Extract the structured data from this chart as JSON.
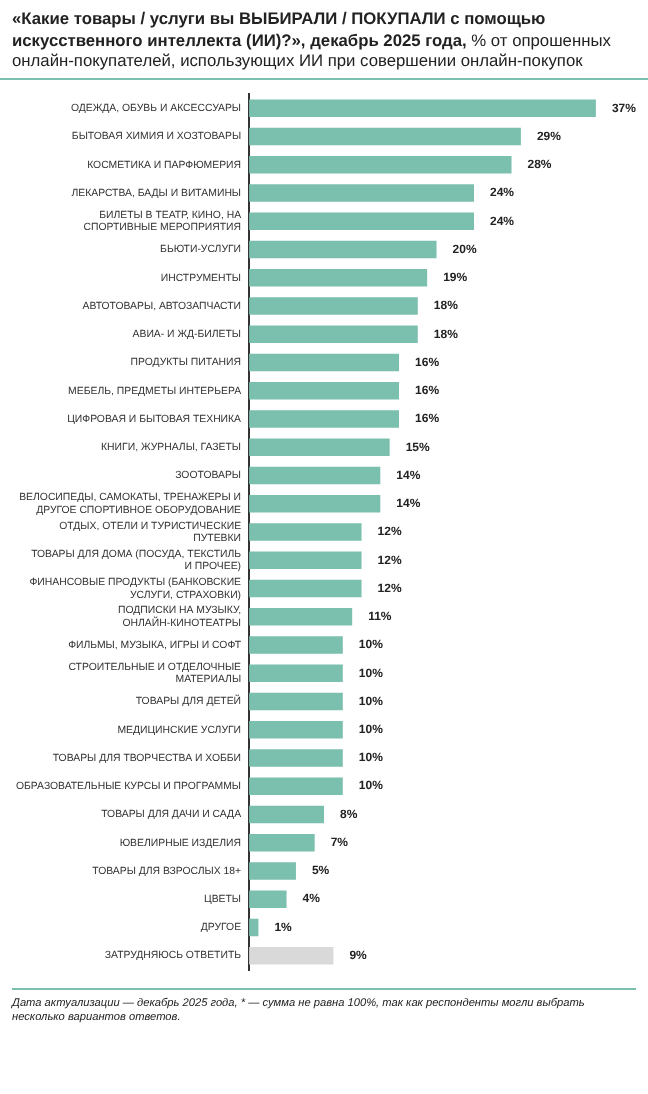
{
  "chart_data": {
    "type": "bar",
    "orientation": "horizontal",
    "title": "«Какие товары / услуги вы ВЫБИРАЛИ / ПОКУПАЛИ с помощью искусственного интеллекта (ИИ)?», декабрь 2025 года,",
    "subtitle": "% от опрошенных онлайн-покупателей, использующих ИИ при совершении онлайн-покупок",
    "categories": [
      "ОДЕЖДА, ОБУВЬ И АКСЕССУАРЫ",
      "БЫТОВАЯ ХИМИЯ И ХОЗТОВАРЫ",
      "КОСМЕТИКА И ПАРФЮМЕРИЯ",
      "ЛЕКАРСТВА, БАДЫ И ВИТАМИНЫ",
      "БИЛЕТЫ В ТЕАТР, КИНО, НА СПОРТИВНЫЕ МЕРОПРИЯТИЯ",
      "БЬЮТИ-УСЛУГИ",
      "ИНСТРУМЕНТЫ",
      "АВТОТОВАРЫ, АВТОЗАПЧАСТИ",
      "АВИА- И ЖД-БИЛЕТЫ",
      "ПРОДУКТЫ ПИТАНИЯ",
      "МЕБЕЛЬ, ПРЕДМЕТЫ ИНТЕРЬЕРА",
      "ЦИФРОВАЯ И БЫТОВАЯ ТЕХНИКА",
      "КНИГИ, ЖУРНАЛЫ, ГАЗЕТЫ",
      "ЗООТОВАРЫ",
      "ВЕЛОСИПЕДЫ, САМОКАТЫ, ТРЕНАЖЕРЫ И ДРУГОЕ СПОРТИВНОЕ ОБОРУДОВАНИЕ",
      "ОТДЫХ, ОТЕЛИ И ТУРИСТИЧЕСКИЕ ПУТЕВКИ",
      "ТОВАРЫ ДЛЯ ДОМА (ПОСУДА, ТЕКСТИЛЬ И ПРОЧЕЕ)",
      "ФИНАНСОВЫЕ ПРОДУКТЫ (БАНКОВСКИЕ УСЛУГИ, СТРАХОВКИ)",
      "ПОДПИСКИ НА МУЗЫКУ, ОНЛАЙН-КИНОТЕАТРЫ",
      "ФИЛЬМЫ, МУЗЫКА, ИГРЫ И СОФТ",
      "СТРОИТЕЛЬНЫЕ И ОТДЕЛОЧНЫЕ МАТЕРИАЛЫ",
      "ТОВАРЫ ДЛЯ ДЕТЕЙ",
      "МЕДИЦИНСКИЕ УСЛУГИ",
      "ТОВАРЫ ДЛЯ ТВОРЧЕСТВА И ХОББИ",
      "ОБРАЗОВАТЕЛЬНЫЕ КУРСЫ И ПРОГРАММЫ",
      "ТОВАРЫ ДЛЯ ДАЧИ И САДА",
      "ЮВЕЛИРНЫЕ ИЗДЕЛИЯ",
      "ТОВАРЫ ДЛЯ ВЗРОСЛЫХ 18+",
      "ЦВЕТЫ",
      "ДРУГОЕ",
      "ЗАТРУДНЯЮСЬ ОТВЕТИТЬ"
    ],
    "values": [
      37,
      29,
      28,
      24,
      24,
      20,
      19,
      18,
      18,
      16,
      16,
      16,
      15,
      14,
      14,
      12,
      12,
      12,
      11,
      10,
      10,
      10,
      10,
      10,
      10,
      8,
      7,
      5,
      4,
      1,
      9
    ],
    "value_labels": [
      "37%",
      "29%",
      "28%",
      "24%",
      "24%",
      "20%",
      "19%",
      "18%",
      "18%",
      "16%",
      "16%",
      "16%",
      "15%",
      "14%",
      "14%",
      "12%",
      "12%",
      "12%",
      "11%",
      "10%",
      "10%",
      "10%",
      "10%",
      "10%",
      "10%",
      "8%",
      "7%",
      "5%",
      "4%",
      "1%",
      "9%"
    ],
    "colors": [
      "#7bbfae",
      "#7bbfae",
      "#7bbfae",
      "#7bbfae",
      "#7bbfae",
      "#7bbfae",
      "#7bbfae",
      "#7bbfae",
      "#7bbfae",
      "#7bbfae",
      "#7bbfae",
      "#7bbfae",
      "#7bbfae",
      "#7bbfae",
      "#7bbfae",
      "#7bbfae",
      "#7bbfae",
      "#7bbfae",
      "#7bbfae",
      "#7bbfae",
      "#7bbfae",
      "#7bbfae",
      "#7bbfae",
      "#7bbfae",
      "#7bbfae",
      "#7bbfae",
      "#7bbfae",
      "#7bbfae",
      "#7bbfae",
      "#7bbfae",
      "#d9d9d9"
    ],
    "tick_labels": "y",
    "legend": false,
    "annotations": [
      "Дата актуализации — декабрь 2025 года, * — сумма не равна 100%, так как респонденты могли выбрать несколько вариантов ответов."
    ]
  }
}
